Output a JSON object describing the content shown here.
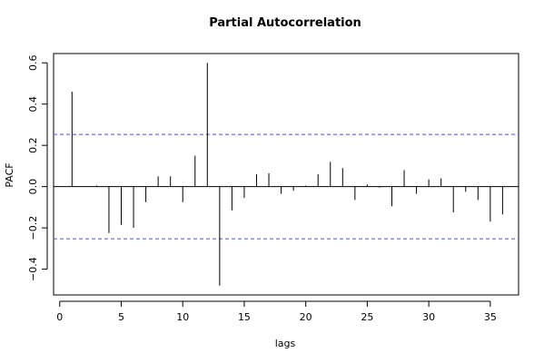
{
  "chart_data": {
    "type": "bar",
    "title": "Partial Autocorrelation",
    "xlabel": "lags",
    "ylabel": "PACF",
    "xlim": [
      -0.5,
      37.3
    ],
    "ylim": [
      -0.525,
      0.645
    ],
    "x_ticks": [
      0,
      5,
      10,
      15,
      20,
      25,
      30,
      35
    ],
    "y_ticks": [
      -0.4,
      -0.2,
      0.0,
      0.2,
      0.4,
      0.6
    ],
    "y_tick_labels": [
      "−0.4",
      "−0.2",
      "0.0",
      "0.2",
      "0.4",
      "0.6"
    ],
    "x": [
      1,
      2,
      3,
      4,
      5,
      6,
      7,
      8,
      9,
      10,
      11,
      12,
      13,
      14,
      15,
      16,
      17,
      18,
      19,
      20,
      21,
      22,
      23,
      24,
      25,
      26,
      27,
      28,
      29,
      30,
      31,
      32,
      33,
      34,
      35,
      36
    ],
    "values": [
      0.46,
      0.0,
      0.005,
      -0.225,
      -0.185,
      -0.2,
      -0.075,
      0.05,
      0.05,
      -0.075,
      0.15,
      0.6,
      -0.48,
      -0.115,
      -0.055,
      0.06,
      0.065,
      -0.035,
      -0.02,
      0.005,
      0.06,
      0.12,
      0.09,
      -0.065,
      0.01,
      -0.005,
      -0.095,
      0.08,
      -0.035,
      0.035,
      0.04,
      -0.125,
      -0.025,
      -0.065,
      -0.17,
      -0.135
    ],
    "confidence_band": 0.253,
    "confidence_color": "#4b4bff",
    "grid": false
  }
}
